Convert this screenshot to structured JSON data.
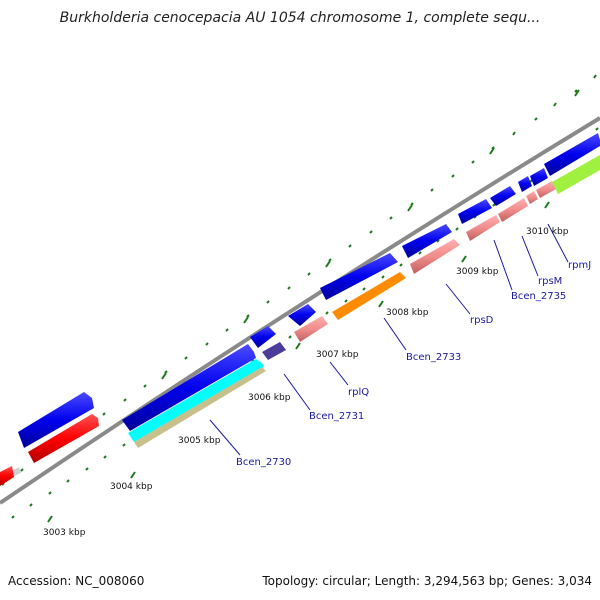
{
  "title": "Burkholderia cenocepacia AU 1054 chromosome 1, complete sequ...",
  "footer": {
    "accession": "Accession: NC_008060",
    "summary": "Topology: circular; Length: 3,294,563 bp; Genes: 3,034"
  },
  "tick_labels": [
    "3003 kbp",
    "3004 kbp",
    "3005 kbp",
    "3006 kbp",
    "3007 kbp",
    "3008 kbp",
    "3009 kbp",
    "3010 kbp"
  ],
  "gene_labels": [
    "Bcen_2730",
    "Bcen_2731",
    "rplQ",
    "Bcen_2733",
    "rpsD",
    "Bcen_2735",
    "rpsM",
    "rpmJ"
  ],
  "colors": {
    "cds": "#0000ee",
    "cds_alt": "#ff0000",
    "rna": "#f08c8c",
    "orange": "#ff8c00",
    "cyan": "#00ffff",
    "khaki": "#c8c08c",
    "purple": "#4b3c9a",
    "lime": "#a0f040",
    "backbone": "#808080",
    "tick": "#1a7a1a",
    "label": "#1a1aa0"
  }
}
